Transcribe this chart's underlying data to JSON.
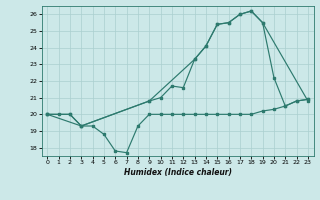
{
  "bg_color": "#cce8e8",
  "line_color": "#2d7a6e",
  "grid_color": "#aacfcf",
  "xlabel": "Humidex (Indice chaleur)",
  "xlim": [
    -0.5,
    23.5
  ],
  "ylim": [
    17.5,
    26.5
  ],
  "yticks": [
    18,
    19,
    20,
    21,
    22,
    23,
    24,
    25,
    26
  ],
  "xticks": [
    0,
    1,
    2,
    3,
    4,
    5,
    6,
    7,
    8,
    9,
    10,
    11,
    12,
    13,
    14,
    15,
    16,
    17,
    18,
    19,
    20,
    21,
    22,
    23
  ],
  "lines": [
    {
      "x": [
        0,
        1,
        2,
        3,
        4,
        5,
        6,
        7,
        8,
        9,
        10,
        11,
        12,
        13,
        14,
        15,
        16,
        17,
        18,
        19,
        20,
        21,
        22,
        23
      ],
      "y": [
        20,
        20,
        20,
        19.3,
        19.3,
        18.8,
        17.8,
        17.7,
        19.3,
        20.0,
        20.0,
        20.0,
        20.0,
        20.0,
        20.0,
        20.0,
        20.0,
        20.0,
        20.0,
        20.2,
        20.3,
        20.5,
        20.8,
        20.9
      ]
    },
    {
      "x": [
        0,
        2,
        3,
        9,
        10,
        11,
        12,
        13,
        14,
        15,
        16,
        17,
        18,
        19,
        20,
        21,
        22,
        23
      ],
      "y": [
        20,
        20,
        19.3,
        20.8,
        21.0,
        21.7,
        21.6,
        23.3,
        24.1,
        25.4,
        25.5,
        26.0,
        26.2,
        25.5,
        22.2,
        20.5,
        20.8,
        20.9
      ]
    },
    {
      "x": [
        0,
        3,
        9,
        13,
        14,
        15,
        16,
        17,
        18,
        19,
        23
      ],
      "y": [
        20,
        19.3,
        20.8,
        23.3,
        24.1,
        25.4,
        25.5,
        26.0,
        26.2,
        25.5,
        20.8
      ]
    }
  ]
}
